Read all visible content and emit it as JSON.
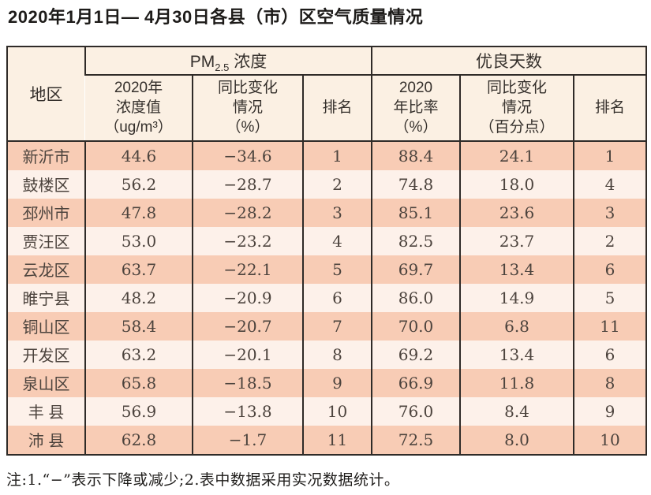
{
  "title": "2020年1月1日— 4月30日各县（市）区空气质量情况",
  "note": "注:1.“−”表示下降或减少;2.表中数据采用实况数据统计。",
  "colors": {
    "border": "#2f2b28",
    "header_bg": "#fbf0e3",
    "stripe_odd": "#f8ccb5",
    "stripe_even": "#fdf1ea",
    "header_text": "#35302c",
    "cell_text": "#4c433d",
    "title_text": "#1d1b19"
  },
  "table": {
    "region_header": "地区",
    "groups": [
      {
        "main": "PM",
        "sub": "2.5",
        "rest": " 浓度"
      },
      {
        "main": "优良天数",
        "sub": "",
        "rest": ""
      }
    ],
    "subheaders": [
      "2020年\n浓度值\n（ug/m³）",
      "同比变化\n情况\n（%）",
      "排名",
      "2020\n年比率\n（%）",
      "同比变化\n情况\n（百分点）",
      "排名"
    ],
    "rows": [
      [
        "新沂市",
        "44.6",
        "−34.6",
        "1",
        "88.4",
        "24.1",
        "1"
      ],
      [
        "鼓楼区",
        "56.2",
        "−28.7",
        "2",
        "74.8",
        "18.0",
        "4"
      ],
      [
        "邳州市",
        "47.8",
        "−28.2",
        "3",
        "85.1",
        "23.6",
        "3"
      ],
      [
        "贾汪区",
        "53.0",
        "−23.2",
        "4",
        "82.5",
        "23.7",
        "2"
      ],
      [
        "云龙区",
        "63.7",
        "−22.1",
        "5",
        "69.7",
        "13.4",
        "6"
      ],
      [
        "睢宁县",
        "48.2",
        "−20.9",
        "6",
        "86.0",
        "14.9",
        "5"
      ],
      [
        "铜山区",
        "58.4",
        "−20.7",
        "7",
        "70.0",
        "6.8",
        "11"
      ],
      [
        "开发区",
        "63.2",
        "−20.1",
        "8",
        "69.2",
        "13.4",
        "6"
      ],
      [
        "泉山区",
        "65.8",
        "−18.5",
        "9",
        "66.9",
        "11.8",
        "8"
      ],
      [
        "丰 县",
        "56.9",
        "−13.8",
        "10",
        "76.0",
        "8.4",
        "9"
      ],
      [
        "沛 县",
        "62.8",
        "−1.7",
        "11",
        "72.5",
        "8.0",
        "10"
      ]
    ]
  }
}
